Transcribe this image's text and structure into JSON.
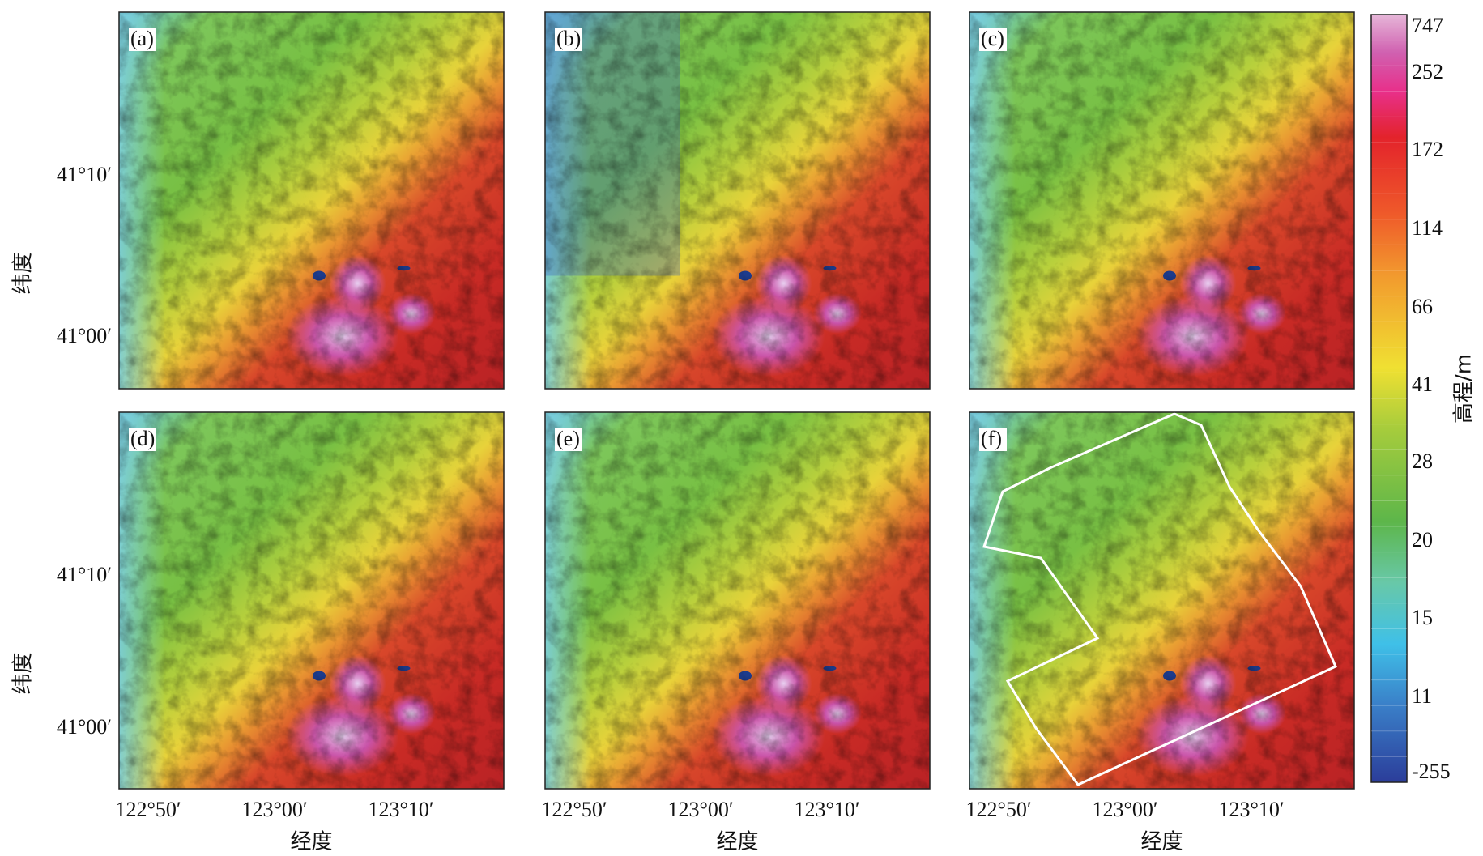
{
  "panels": [
    {
      "label": "(a)"
    },
    {
      "label": "(b)"
    },
    {
      "label": "(c)"
    },
    {
      "label": "(d)"
    },
    {
      "label": "(e)"
    },
    {
      "label": "(f)"
    }
  ],
  "y_axis": {
    "label": "纬度",
    "ticks": [
      "41°10′",
      "41°00′"
    ]
  },
  "x_axis": {
    "label": "经度",
    "ticks": [
      "122°50′",
      "123°00′",
      "123°10′"
    ]
  },
  "colorbar": {
    "title": "高程/m",
    "labels": [
      747,
      252,
      172,
      114,
      66,
      41,
      28,
      20,
      15,
      11,
      -255
    ]
  }
}
